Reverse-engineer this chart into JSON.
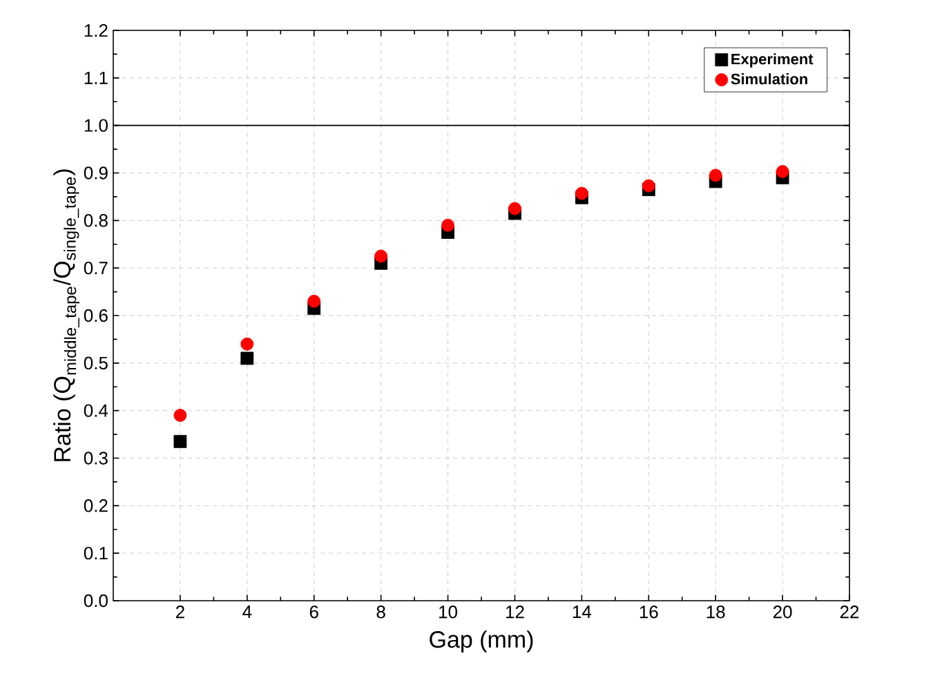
{
  "chart_data": {
    "type": "scatter",
    "xlabel": "Gap (mm)",
    "ylabel": "\\text{Ratio (Q}_{\\text{middle\\_tape}}\\text{/Q}_{\\text{single\\_tape}}\\text{)}",
    "xlim": [
      0,
      22
    ],
    "xticks": [
      2,
      4,
      6,
      8,
      10,
      12,
      14,
      16,
      18,
      20,
      22
    ],
    "ylim": [
      0,
      1.2
    ],
    "yticks": [
      {
        "value": 0,
        "label": "0.0"
      },
      0.1,
      0.2,
      0.3,
      0.4,
      0.5,
      0.6,
      0.7,
      0.8,
      0.9,
      {
        "value": 1,
        "label": "1.0"
      },
      1.1,
      1.2
    ],
    "x": [
      2,
      4,
      6,
      8,
      10,
      12,
      14,
      16,
      18,
      20
    ],
    "series": [
      {
        "name": "Experiment",
        "color": "#000000",
        "marker": "square",
        "values": [
          0.335,
          0.51,
          0.615,
          0.71,
          0.775,
          0.815,
          0.848,
          0.865,
          0.882,
          0.89
        ]
      },
      {
        "name": "Simulation",
        "color": "#ff0000",
        "marker": "circle",
        "values": [
          0.39,
          0.54,
          0.63,
          0.725,
          0.79,
          0.825,
          0.857,
          0.873,
          0.895,
          0.903
        ]
      }
    ],
    "ref_lines": [
      {
        "axis": "y",
        "value": 1,
        "color": "#000000",
        "line_style": "solid"
      }
    ],
    "grid": true,
    "legend": "top right"
  }
}
